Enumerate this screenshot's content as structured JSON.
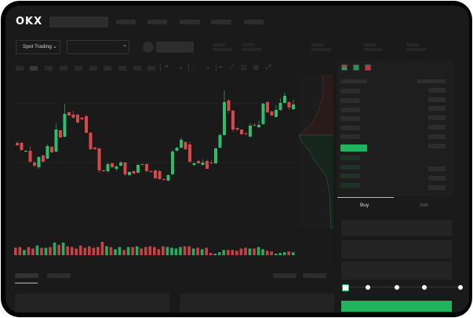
{
  "header": {
    "logo": "OKX",
    "market_selector": "Spot Trading",
    "chevron_icon": "chevron-down-icon"
  },
  "colors": {
    "up": "#2ebd6b",
    "down": "#d8484b",
    "accent": "#22b35e",
    "background": "#1a1a1a"
  },
  "order_book": {
    "view_icons": [
      "orderbook-both-icon",
      "orderbook-bids-icon",
      "orderbook-asks-icon"
    ]
  },
  "trade_form": {
    "tabs": [
      {
        "label": "Buy",
        "active": true
      },
      {
        "label": "Sell",
        "active": false
      }
    ],
    "slider_percent": 0,
    "slider_stops": [
      0,
      25,
      50,
      75,
      100
    ]
  },
  "chart_data": {
    "type": "candlestick",
    "candles": [
      [
        58,
        55,
        60,
        54
      ],
      [
        58,
        49,
        59,
        48
      ],
      [
        47,
        48,
        49,
        46
      ],
      [
        48,
        34,
        54,
        33
      ],
      [
        33,
        29,
        35,
        27
      ],
      [
        27,
        40,
        41,
        25
      ],
      [
        42,
        34,
        43,
        33
      ],
      [
        38,
        54,
        56,
        37
      ],
      [
        53,
        46,
        54,
        45
      ],
      [
        47,
        75,
        83,
        46
      ],
      [
        74,
        65,
        75,
        64
      ],
      [
        66,
        95,
        108,
        65
      ],
      [
        97,
        93,
        98,
        92
      ],
      [
        94,
        90,
        99,
        89
      ],
      [
        94,
        84,
        95,
        83
      ],
      [
        90,
        88,
        91,
        87
      ],
      [
        92,
        71,
        94,
        70
      ],
      [
        71,
        50,
        72,
        49
      ],
      [
        52,
        50,
        53,
        49
      ],
      [
        51,
        23,
        52,
        20
      ],
      [
        23,
        22,
        24,
        21
      ],
      [
        22,
        31,
        33,
        20
      ],
      [
        32,
        27,
        33,
        26
      ],
      [
        25,
        28,
        30,
        22
      ],
      [
        29,
        33,
        35,
        28
      ],
      [
        33,
        18,
        34,
        16
      ],
      [
        17,
        21,
        22,
        16
      ],
      [
        22,
        19,
        23,
        18
      ],
      [
        20,
        30,
        31,
        19
      ],
      [
        31,
        30,
        32,
        29
      ],
      [
        31,
        22,
        32,
        21
      ],
      [
        22,
        21,
        23,
        20
      ],
      [
        23,
        13,
        24,
        12
      ],
      [
        22,
        12,
        24,
        11
      ],
      [
        12,
        11,
        13,
        10
      ],
      [
        10,
        17,
        18,
        9
      ],
      [
        18,
        47,
        49,
        17
      ],
      [
        48,
        52,
        53,
        47
      ],
      [
        52,
        62,
        65,
        51
      ],
      [
        59,
        50,
        60,
        49
      ],
      [
        56,
        34,
        60,
        33
      ],
      [
        30,
        32,
        34,
        28
      ],
      [
        35,
        32,
        36,
        31
      ],
      [
        30,
        33,
        37,
        29
      ],
      [
        35,
        25,
        36,
        25
      ],
      [
        33,
        32,
        36,
        31
      ],
      [
        32,
        51,
        52,
        31
      ],
      [
        52,
        68,
        70,
        51
      ],
      [
        68,
        110,
        125,
        67
      ],
      [
        112,
        99,
        114,
        96
      ],
      [
        99,
        75,
        100,
        72
      ],
      [
        77,
        75,
        78,
        73
      ],
      [
        75,
        69,
        76,
        68
      ],
      [
        70,
        69,
        72,
        68
      ],
      [
        66,
        80,
        83,
        65
      ],
      [
        81,
        80,
        83,
        79
      ],
      [
        78,
        81,
        86,
        77
      ],
      [
        82,
        108,
        109,
        81
      ],
      [
        110,
        97,
        111,
        96
      ],
      [
        98,
        93,
        99,
        92
      ],
      [
        91,
        100,
        106,
        90
      ],
      [
        100,
        109,
        115,
        99
      ],
      [
        109,
        118,
        122,
        108
      ],
      [
        110,
        103,
        111,
        100
      ],
      [
        101,
        107,
        113,
        100
      ]
    ],
    "candle_fields": [
      "open",
      "close",
      "high",
      "low"
    ],
    "volumes": [
      10,
      11,
      7,
      11,
      9,
      13,
      10,
      10,
      11,
      17,
      14,
      17,
      12,
      11,
      9,
      13,
      10,
      12,
      10,
      11,
      18,
      12,
      11,
      8,
      11,
      7,
      11,
      11,
      12,
      9,
      11,
      12,
      11,
      8,
      12,
      11,
      10,
      9,
      11,
      12,
      12,
      9,
      10,
      8,
      10,
      3,
      2,
      4,
      7,
      7,
      7,
      6,
      9,
      10,
      9,
      9,
      11,
      8,
      6,
      5,
      2,
      3,
      4,
      5,
      4
    ],
    "ylim": [
      0,
      145
    ],
    "grid": true
  }
}
